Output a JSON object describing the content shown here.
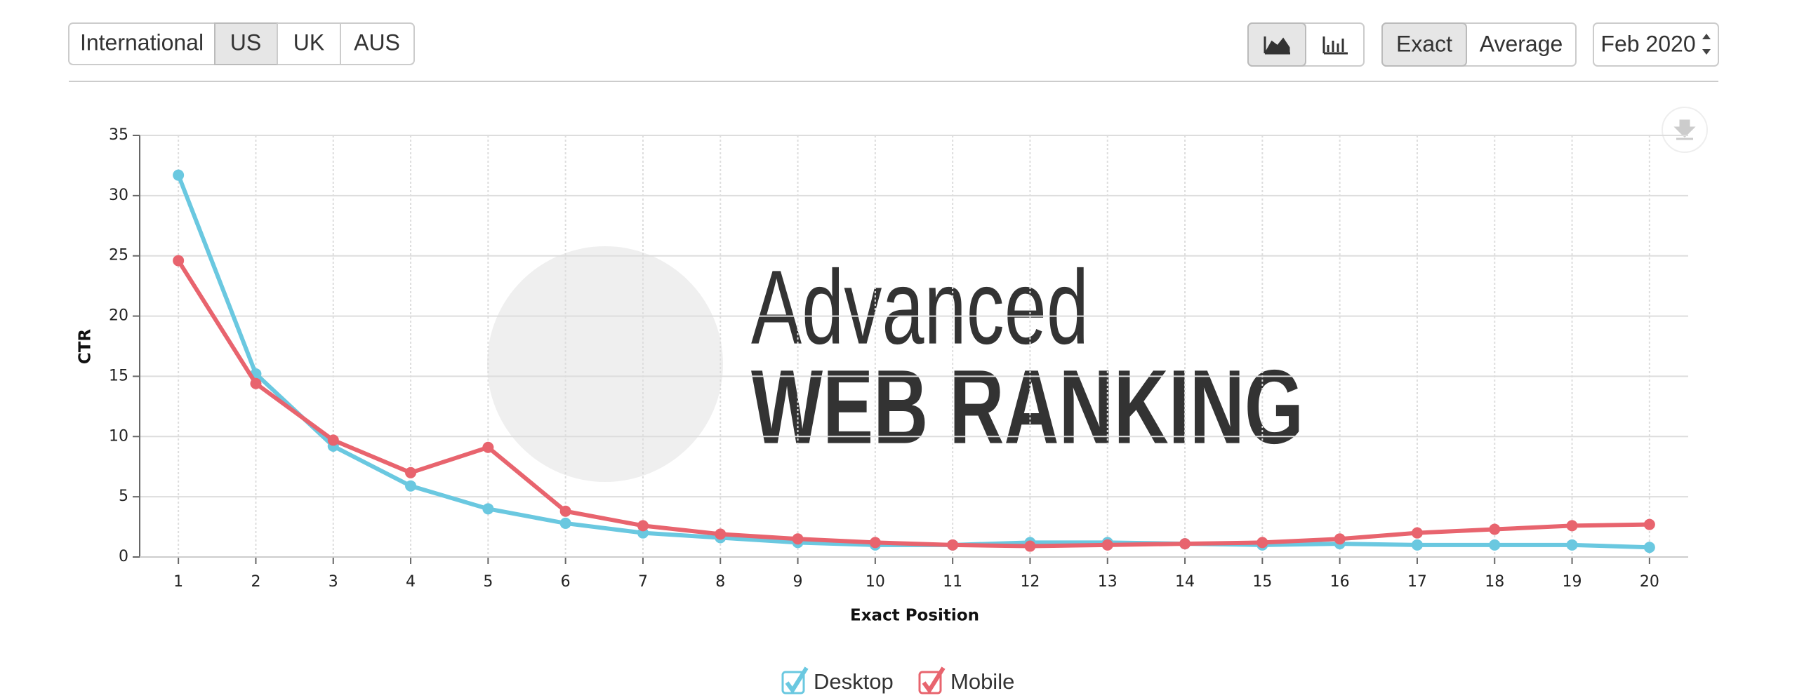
{
  "controls": {
    "regions": [
      "International",
      "US",
      "UK",
      "AUS"
    ],
    "modes": [
      "Exact",
      "Average"
    ],
    "date": "Feb 2020"
  },
  "watermark": {
    "line1": "Advanced",
    "line2": "WEB RANKING"
  },
  "chart_data": {
    "type": "line",
    "x_label": "Exact Position",
    "y_label": "CTR",
    "x": [
      1,
      2,
      3,
      4,
      5,
      6,
      7,
      8,
      9,
      10,
      11,
      12,
      13,
      14,
      15,
      16,
      17,
      18,
      19,
      20
    ],
    "xlim": [
      0.5,
      20.5
    ],
    "xticks": [
      1,
      2,
      3,
      4,
      5,
      6,
      7,
      8,
      9,
      10,
      11,
      12,
      13,
      14,
      15,
      16,
      17,
      18,
      19,
      20
    ],
    "ylim": [
      0,
      35
    ],
    "yticks": [
      0,
      5,
      10,
      15,
      20,
      25,
      30,
      35
    ],
    "grid": true,
    "series": [
      {
        "name": "Desktop",
        "color": "#6ac8e0",
        "values": [
          31.7,
          15.2,
          9.2,
          5.9,
          4.0,
          2.8,
          2.0,
          1.6,
          1.2,
          1.0,
          1.0,
          1.2,
          1.2,
          1.1,
          1.0,
          1.1,
          1.0,
          1.0,
          1.0,
          0.8
        ]
      },
      {
        "name": "Mobile",
        "color": "#e8646e",
        "values": [
          24.6,
          14.4,
          9.7,
          7.0,
          9.1,
          3.8,
          2.6,
          1.9,
          1.5,
          1.2,
          1.0,
          0.9,
          1.0,
          1.1,
          1.2,
          1.5,
          2.0,
          2.3,
          2.6,
          2.7
        ]
      }
    ]
  }
}
